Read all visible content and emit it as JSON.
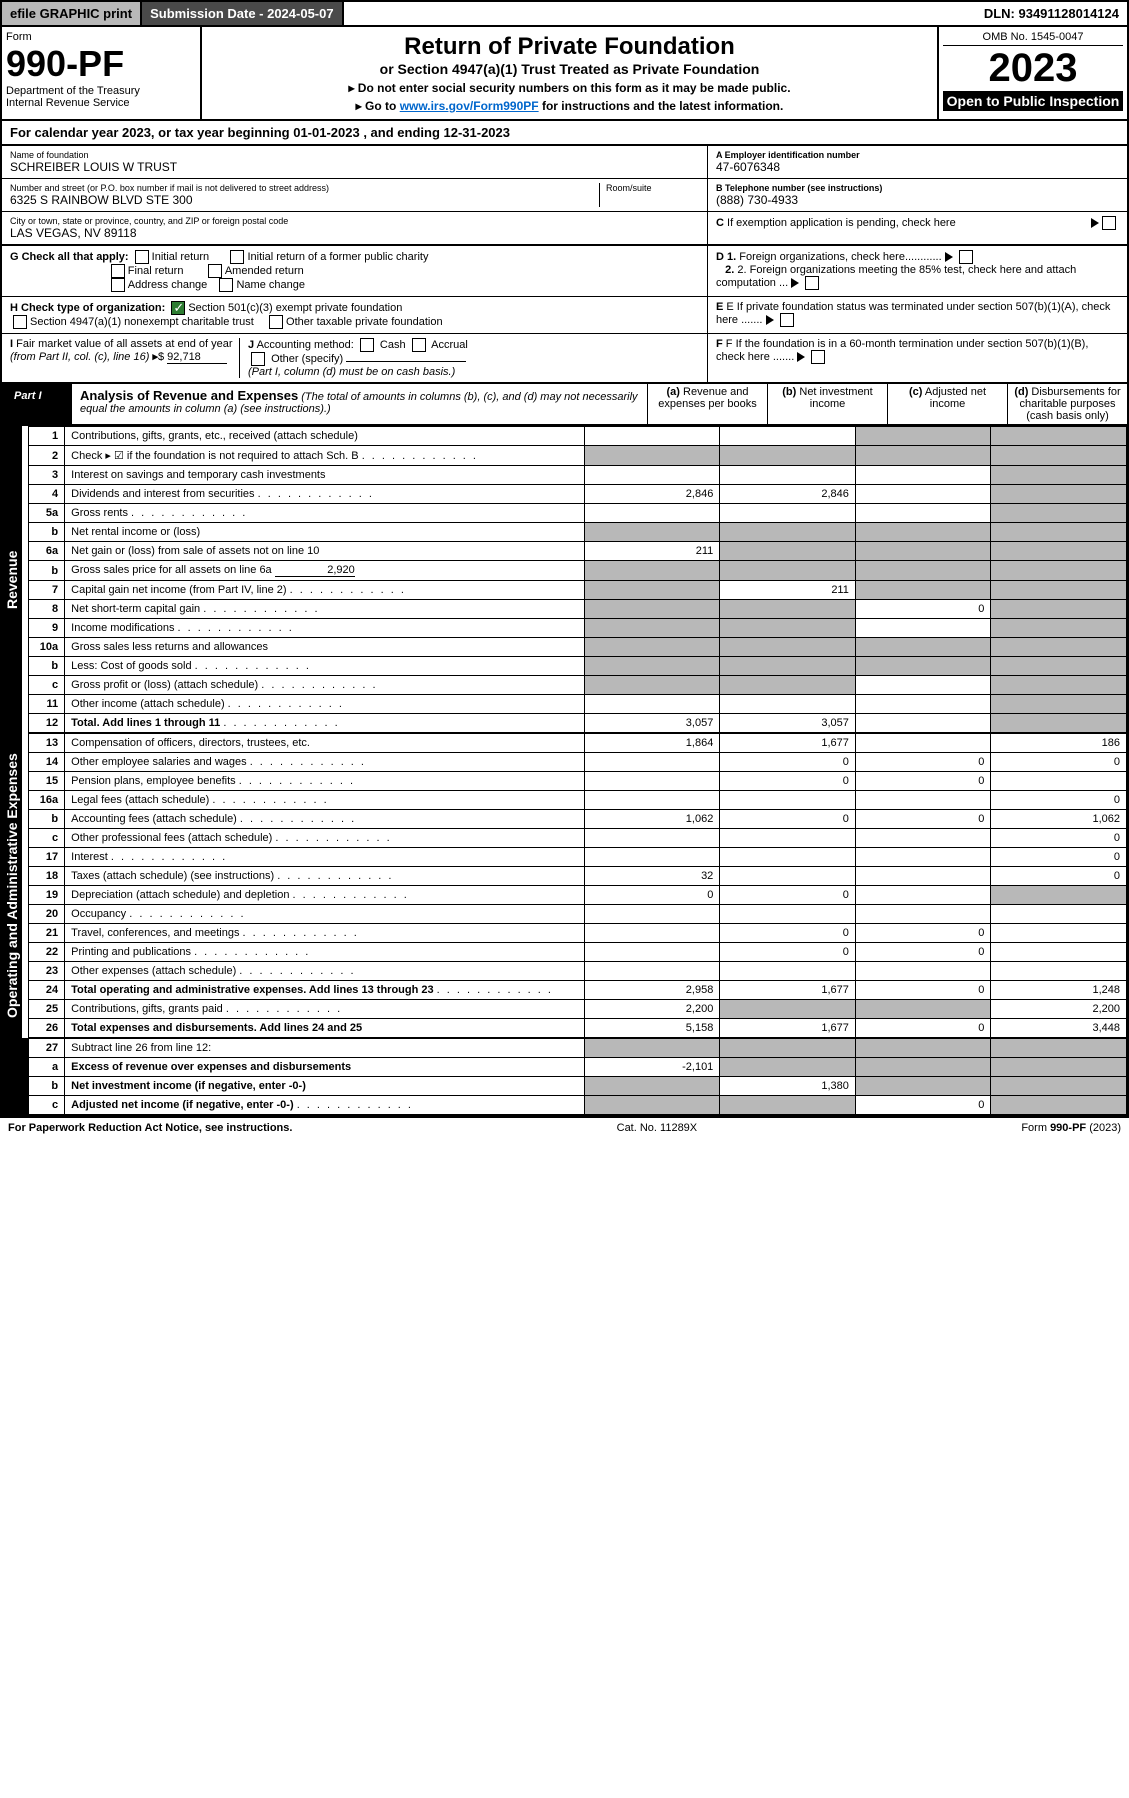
{
  "topbar": {
    "efile": "efile GRAPHIC print",
    "sub_label": "Submission Date - 2024-05-07",
    "dln": "DLN: 93491128014124"
  },
  "header": {
    "form": "Form",
    "num": "990-PF",
    "dept": "Department of the Treasury\nInternal Revenue Service",
    "title": "Return of Private Foundation",
    "subtitle": "or Section 4947(a)(1) Trust Treated as Private Foundation",
    "note1": "▸ Do not enter social security numbers on this form as it may be made public.",
    "note2_pre": "▸ Go to ",
    "note2_link": "www.irs.gov/Form990PF",
    "note2_post": " for instructions and the latest information.",
    "omb": "OMB No. 1545-0047",
    "year": "2023",
    "open": "Open to Public Inspection"
  },
  "cal_year": "For calendar year 2023, or tax year beginning 01-01-2023                , and ending 12-31-2023",
  "info": {
    "name_label": "Name of foundation",
    "name": "SCHREIBER LOUIS W TRUST",
    "addr_label": "Number and street (or P.O. box number if mail is not delivered to street address)",
    "addr": "6325 S RAINBOW BLVD STE 300",
    "room_label": "Room/suite",
    "city_label": "City or town, state or province, country, and ZIP or foreign postal code",
    "city": "LAS VEGAS, NV  89118",
    "a_label": "A Employer identification number",
    "a_val": "47-6076348",
    "b_label": "B Telephone number (see instructions)",
    "b_val": "(888) 730-4933",
    "c_label": "C If exemption application is pending, check here",
    "g_label": "G Check all that apply:",
    "g_opts": [
      "Initial return",
      "Final return",
      "Address change",
      "Initial return of a former public charity",
      "Amended return",
      "Name change"
    ],
    "d1": "D 1. Foreign organizations, check here............",
    "d2": "2. Foreign organizations meeting the 85% test, check here and attach computation ...",
    "h_label": "H Check type of organization:",
    "h_501": "Section 501(c)(3) exempt private foundation",
    "h_4947": "Section 4947(a)(1) nonexempt charitable trust",
    "h_other": "Other taxable private foundation",
    "e_label": "E If private foundation status was terminated under section 507(b)(1)(A), check here .......",
    "i_label": "I Fair market value of all assets at end of year (from Part II, col. (c), line 16) ▸$",
    "i_val": "92,718",
    "j_label": "J Accounting method:",
    "j_cash": "Cash",
    "j_accrual": "Accrual",
    "j_other": "Other (specify)",
    "j_note": "(Part I, column (d) must be on cash basis.)",
    "f_label": "F If the foundation is in a 60-month termination under section 507(b)(1)(B), check here .......",
    "check_note": "Check ▸      if the foundation is not required to attach Sch. B"
  },
  "part1": {
    "label": "Part I",
    "title": "Analysis of Revenue and Expenses",
    "note": "(The total of amounts in columns (b), (c), and (d) may not necessarily equal the amounts in column (a) (see instructions).)",
    "col_a": "(a) Revenue and expenses per books",
    "col_b": "(b) Net investment income",
    "col_c": "(c) Adjusted net income",
    "col_d": "(d) Disbursements for charitable purposes (cash basis only)"
  },
  "rows": [
    {
      "n": "1",
      "d": "Contributions, gifts, grants, etc., received (attach schedule)",
      "a": "",
      "b": "",
      "c": "s",
      "dd": "s"
    },
    {
      "n": "2",
      "d": "Check ▸ ☑ if the foundation is not required to attach Sch. B",
      "a": "s",
      "b": "s",
      "c": "s",
      "dd": "s",
      "dots": true
    },
    {
      "n": "3",
      "d": "Interest on savings and temporary cash investments",
      "a": "",
      "b": "",
      "c": "",
      "dd": "s"
    },
    {
      "n": "4",
      "d": "Dividends and interest from securities",
      "a": "2,846",
      "b": "2,846",
      "c": "",
      "dd": "s",
      "dots": true
    },
    {
      "n": "5a",
      "d": "Gross rents",
      "a": "",
      "b": "",
      "c": "",
      "dd": "s",
      "dots": true
    },
    {
      "n": "b",
      "d": "Net rental income or (loss)",
      "a": "s",
      "b": "s",
      "c": "s",
      "dd": "s",
      "under": true
    },
    {
      "n": "6a",
      "d": "Net gain or (loss) from sale of assets not on line 10",
      "a": "211",
      "b": "s",
      "c": "s",
      "dd": "s"
    },
    {
      "n": "b",
      "d": "Gross sales price for all assets on line 6a",
      "a": "s",
      "b": "s",
      "c": "s",
      "dd": "s",
      "inline": "2,920"
    },
    {
      "n": "7",
      "d": "Capital gain net income (from Part IV, line 2)",
      "a": "s",
      "b": "211",
      "c": "s",
      "dd": "s",
      "dots": true
    },
    {
      "n": "8",
      "d": "Net short-term capital gain",
      "a": "s",
      "b": "s",
      "c": "0",
      "dd": "s",
      "dots": true
    },
    {
      "n": "9",
      "d": "Income modifications",
      "a": "s",
      "b": "s",
      "c": "",
      "dd": "s",
      "dots": true
    },
    {
      "n": "10a",
      "d": "Gross sales less returns and allowances",
      "a": "s",
      "b": "s",
      "c": "s",
      "dd": "s",
      "under": true
    },
    {
      "n": "b",
      "d": "Less: Cost of goods sold",
      "a": "s",
      "b": "s",
      "c": "s",
      "dd": "s",
      "under": true,
      "dots": true
    },
    {
      "n": "c",
      "d": "Gross profit or (loss) (attach schedule)",
      "a": "s",
      "b": "s",
      "c": "",
      "dd": "s",
      "dots": true
    },
    {
      "n": "11",
      "d": "Other income (attach schedule)",
      "a": "",
      "b": "",
      "c": "",
      "dd": "s",
      "dots": true
    },
    {
      "n": "12",
      "d": "Total. Add lines 1 through 11",
      "a": "3,057",
      "b": "3,057",
      "c": "",
      "dd": "s",
      "bold": true,
      "dots": true
    }
  ],
  "exp_rows": [
    {
      "n": "13",
      "d": "Compensation of officers, directors, trustees, etc.",
      "a": "1,864",
      "b": "1,677",
      "c": "",
      "dd": "186"
    },
    {
      "n": "14",
      "d": "Other employee salaries and wages",
      "a": "",
      "b": "0",
      "c": "0",
      "dd": "0",
      "dots": true
    },
    {
      "n": "15",
      "d": "Pension plans, employee benefits",
      "a": "",
      "b": "0",
      "c": "0",
      "dd": "",
      "dots": true
    },
    {
      "n": "16a",
      "d": "Legal fees (attach schedule)",
      "a": "",
      "b": "",
      "c": "",
      "dd": "0",
      "dots": true
    },
    {
      "n": "b",
      "d": "Accounting fees (attach schedule)",
      "a": "1,062",
      "b": "0",
      "c": "0",
      "dd": "1,062",
      "dots": true
    },
    {
      "n": "c",
      "d": "Other professional fees (attach schedule)",
      "a": "",
      "b": "",
      "c": "",
      "dd": "0",
      "dots": true
    },
    {
      "n": "17",
      "d": "Interest",
      "a": "",
      "b": "",
      "c": "",
      "dd": "0",
      "dots": true
    },
    {
      "n": "18",
      "d": "Taxes (attach schedule) (see instructions)",
      "a": "32",
      "b": "",
      "c": "",
      "dd": "0",
      "dots": true
    },
    {
      "n": "19",
      "d": "Depreciation (attach schedule) and depletion",
      "a": "0",
      "b": "0",
      "c": "",
      "dd": "s",
      "dots": true
    },
    {
      "n": "20",
      "d": "Occupancy",
      "a": "",
      "b": "",
      "c": "",
      "dd": "",
      "dots": true
    },
    {
      "n": "21",
      "d": "Travel, conferences, and meetings",
      "a": "",
      "b": "0",
      "c": "0",
      "dd": "",
      "dots": true
    },
    {
      "n": "22",
      "d": "Printing and publications",
      "a": "",
      "b": "0",
      "c": "0",
      "dd": "",
      "dots": true
    },
    {
      "n": "23",
      "d": "Other expenses (attach schedule)",
      "a": "",
      "b": "",
      "c": "",
      "dd": "",
      "dots": true
    },
    {
      "n": "24",
      "d": "Total operating and administrative expenses. Add lines 13 through 23",
      "a": "2,958",
      "b": "1,677",
      "c": "0",
      "dd": "1,248",
      "bold": true,
      "dots": true
    },
    {
      "n": "25",
      "d": "Contributions, gifts, grants paid",
      "a": "2,200",
      "b": "s",
      "c": "s",
      "dd": "2,200",
      "dots": true
    },
    {
      "n": "26",
      "d": "Total expenses and disbursements. Add lines 24 and 25",
      "a": "5,158",
      "b": "1,677",
      "c": "0",
      "dd": "3,448",
      "bold": true
    }
  ],
  "end_rows": [
    {
      "n": "27",
      "d": "Subtract line 26 from line 12:",
      "a": "s",
      "b": "s",
      "c": "s",
      "dd": "s"
    },
    {
      "n": "a",
      "d": "Excess of revenue over expenses and disbursements",
      "a": "-2,101",
      "b": "s",
      "c": "s",
      "dd": "s",
      "bold": true
    },
    {
      "n": "b",
      "d": "Net investment income (if negative, enter -0-)",
      "a": "s",
      "b": "1,380",
      "c": "s",
      "dd": "s",
      "bold": true
    },
    {
      "n": "c",
      "d": "Adjusted net income (if negative, enter -0-)",
      "a": "s",
      "b": "s",
      "c": "0",
      "dd": "s",
      "bold": true,
      "dots": true
    }
  ],
  "vert_labels": {
    "rev": "Revenue",
    "exp": "Operating and Administrative Expenses"
  },
  "footer": {
    "left": "For Paperwork Reduction Act Notice, see instructions.",
    "center": "Cat. No. 11289X",
    "right": "Form 990-PF (2023)"
  }
}
